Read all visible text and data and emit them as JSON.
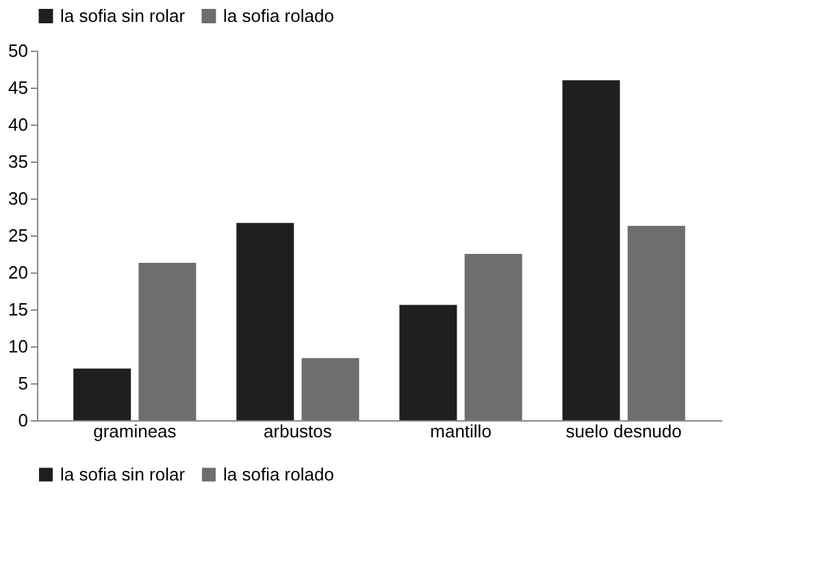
{
  "chart_data": {
    "type": "bar",
    "categories": [
      "gramineas",
      "arbustos",
      "mantillo",
      "suelo desnudo"
    ],
    "series": [
      {
        "name": "la sofia sin rolar",
        "color": "#1f1f1f",
        "values": [
          7,
          26.7,
          15.6,
          46
        ]
      },
      {
        "name": "la sofia rolado",
        "color": "#6e6e6e",
        "values": [
          21.3,
          8.4,
          22.5,
          26.3
        ]
      }
    ],
    "ylim": [
      0,
      50
    ],
    "yticks": [
      0,
      5,
      10,
      15,
      20,
      25,
      30,
      35,
      40,
      45,
      50
    ],
    "grid": false,
    "legend": "bottom"
  }
}
